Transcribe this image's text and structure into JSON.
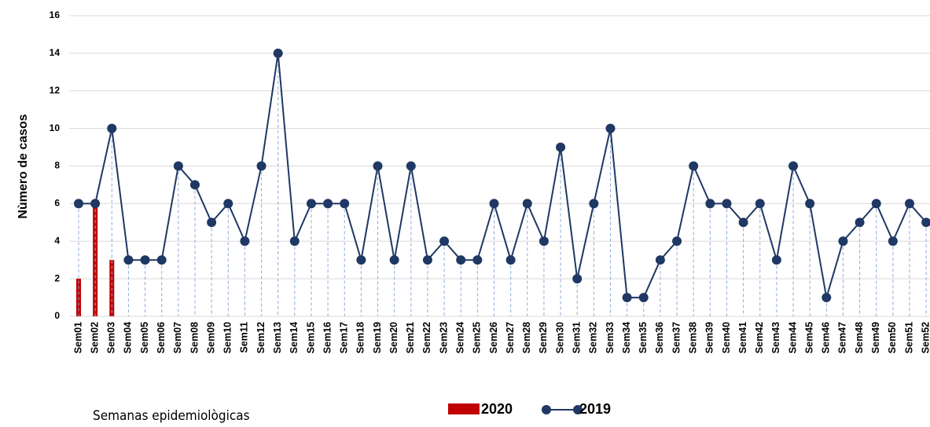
{
  "chart_data": {
    "type": "combo",
    "y_label": "Nùmero de casos",
    "x_label": "Semanas epidemiològicas",
    "categories": [
      "Sem01",
      "Sem02",
      "Sem03",
      "Sem04",
      "Sem05",
      "Sem06",
      "Sem07",
      "Sem08",
      "Sem09",
      "Sem10",
      "Sem11",
      "Sem12",
      "Sem13",
      "Sem14",
      "Sem15",
      "Sem16",
      "Sem17",
      "Sem18",
      "Sem19",
      "Sem20",
      "Sem21",
      "Sem22",
      "Sem23",
      "Sem24",
      "Sem25",
      "Sem26",
      "Sem27",
      "Sem28",
      "Sem29",
      "Sem30",
      "Sem31",
      "Sem32",
      "Sem33",
      "Sem34",
      "Sem35",
      "Sem36",
      "Sem37",
      "Sem38",
      "Sem39",
      "Sem40",
      "Sem41",
      "Sem42",
      "Sem43",
      "Sem44",
      "Sem45",
      "Sem46",
      "Sem47",
      "Sem48",
      "Sem49",
      "Sem50",
      "Sem51",
      "Sem52"
    ],
    "series": [
      {
        "name": "2020",
        "type": "bar",
        "color": "#c00000",
        "values": [
          2,
          6,
          3,
          null,
          null,
          null,
          null,
          null,
          null,
          null,
          null,
          null,
          null,
          null,
          null,
          null,
          null,
          null,
          null,
          null,
          null,
          null,
          null,
          null,
          null,
          null,
          null,
          null,
          null,
          null,
          null,
          null,
          null,
          null,
          null,
          null,
          null,
          null,
          null,
          null,
          null,
          null,
          null,
          null,
          null,
          null,
          null,
          null,
          null,
          null,
          null,
          null
        ]
      },
      {
        "name": "2019",
        "type": "line",
        "color": "#1f3864",
        "values": [
          6,
          6,
          10,
          3,
          3,
          3,
          8,
          7,
          5,
          6,
          4,
          8,
          14,
          4,
          6,
          6,
          6,
          3,
          8,
          3,
          8,
          3,
          4,
          3,
          3,
          6,
          3,
          6,
          4,
          9,
          2,
          6,
          10,
          1,
          1,
          3,
          4,
          8,
          6,
          6,
          5,
          6,
          3,
          8,
          6,
          1,
          4,
          5,
          6,
          4,
          6,
          5
        ]
      }
    ],
    "ylim": [
      0,
      16
    ],
    "yticks": [
      0,
      2,
      4,
      6,
      8,
      10,
      12,
      14,
      16
    ],
    "grid": true
  }
}
